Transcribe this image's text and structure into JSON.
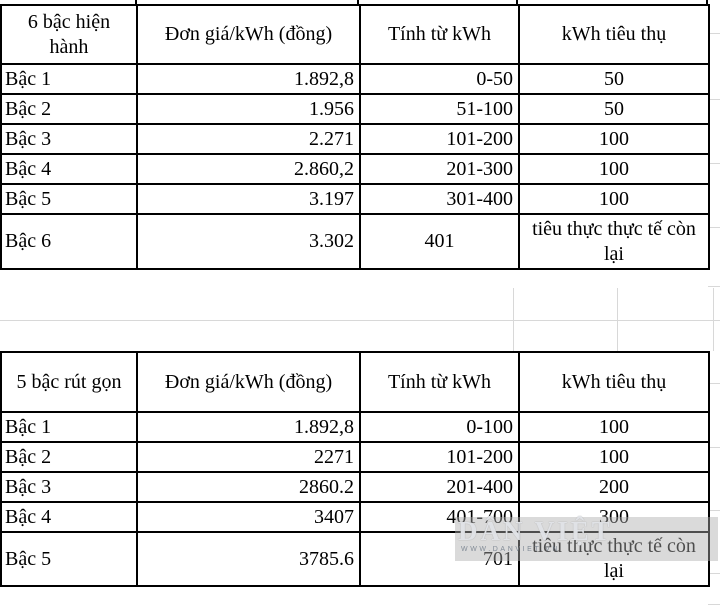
{
  "tables": [
    {
      "corner": "6 bậc hiện hành",
      "headers": {
        "price": "Đơn giá/kWh (đồng)",
        "range": "Tính từ kWh",
        "usage": "kWh tiêu thụ"
      },
      "rows": [
        {
          "label": "Bậc 1",
          "price": "1.892,8",
          "range": "0-50",
          "usage": "50"
        },
        {
          "label": "Bậc 2",
          "price": "1.956",
          "range": "51-100",
          "usage": "50"
        },
        {
          "label": "Bậc 3",
          "price": "2.271",
          "range": "101-200",
          "usage": "100"
        },
        {
          "label": "Bậc 4",
          "price": "2.860,2",
          "range": "201-300",
          "usage": "100"
        },
        {
          "label": "Bậc 5",
          "price": "3.197",
          "range": "301-400",
          "usage": "100"
        },
        {
          "label": "Bậc 6",
          "price": "3.302",
          "range": "401",
          "usage": "tiêu thực thực tế còn lại"
        }
      ]
    },
    {
      "corner": "5 bậc rút gọn",
      "headers": {
        "price": "Đơn giá/kWh (đồng)",
        "range": "Tính từ kWh",
        "usage": "kWh tiêu thụ"
      },
      "rows": [
        {
          "label": "Bậc 1",
          "price": "1.892,8",
          "range": "0-100",
          "usage": "100"
        },
        {
          "label": "Bậc 2",
          "price": "2271",
          "range": "101-200",
          "usage": "100"
        },
        {
          "label": "Bậc 3",
          "price": "2860.2",
          "range": "201-400",
          "usage": "200"
        },
        {
          "label": "Bậc 4",
          "price": "3407",
          "range": "401-700",
          "usage": "300"
        },
        {
          "label": "Bậc 5",
          "price": "3785.6",
          "range": "701",
          "usage": "tiêu thực thực tế còn lại"
        }
      ]
    }
  ],
  "watermark": {
    "name": "DÂN VIỆT",
    "url": "WWW.DANVIET.VN"
  }
}
